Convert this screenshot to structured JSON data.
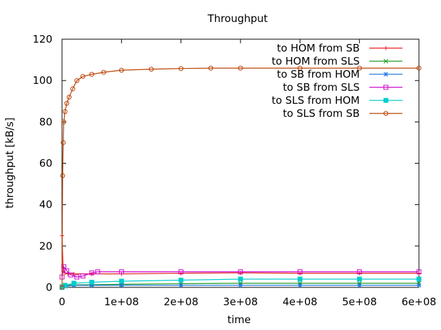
{
  "chart_data": {
    "type": "line",
    "title": "Throughput",
    "xlabel": "time",
    "ylabel": "throughput [kB/s]",
    "xlim": [
      0,
      600000000
    ],
    "ylim": [
      0,
      120
    ],
    "x_ticks": [
      0,
      100000000,
      200000000,
      300000000,
      400000000,
      500000000,
      600000000
    ],
    "x_tick_labels": [
      "0",
      "1e+08",
      "2e+08",
      "3e+08",
      "4e+08",
      "5e+08",
      "6e+08"
    ],
    "y_ticks": [
      0,
      20,
      40,
      60,
      80,
      100,
      120
    ],
    "y_tick_labels": [
      "0",
      "20",
      "40",
      "60",
      "80",
      "100",
      "120"
    ],
    "legend_position": "top-right",
    "grid": false,
    "series": [
      {
        "name": "to HOM from SB",
        "color": "#e41a1c",
        "marker": "plus",
        "x": [
          0,
          2000000,
          5000000,
          10000000,
          20000000,
          50000000,
          100000000,
          200000000,
          300000000,
          400000000,
          500000000,
          600000000
        ],
        "y": [
          25,
          8,
          7,
          6.5,
          6.5,
          6.5,
          6.5,
          6.8,
          7,
          6.8,
          6.8,
          6.8
        ]
      },
      {
        "name": "to HOM from SLS",
        "color": "#1a9a1a",
        "marker": "cross",
        "x": [
          0,
          5000000,
          20000000,
          50000000,
          100000000,
          200000000,
          300000000,
          400000000,
          500000000,
          600000000
        ],
        "y": [
          0.5,
          1,
          1.2,
          1.3,
          1.5,
          1.8,
          2,
          2,
          2,
          2
        ]
      },
      {
        "name": "to SB from HOM",
        "color": "#1f78e0",
        "marker": "star",
        "x": [
          0,
          5000000,
          20000000,
          50000000,
          100000000,
          200000000,
          300000000,
          400000000,
          500000000,
          600000000
        ],
        "y": [
          0,
          0.5,
          1,
          1,
          1,
          1,
          1,
          1,
          1,
          1
        ]
      },
      {
        "name": "to SB from SLS",
        "color": "#cc00cc",
        "marker": "square",
        "x": [
          0,
          3000000,
          8000000,
          15000000,
          25000000,
          35000000,
          50000000,
          60000000,
          100000000,
          200000000,
          300000000,
          400000000,
          500000000,
          600000000
        ],
        "y": [
          5,
          10,
          8,
          6,
          5,
          5.5,
          7,
          7.5,
          7.5,
          7.5,
          7.5,
          7.5,
          7.5,
          7.5
        ]
      },
      {
        "name": "to SLS from HOM",
        "color": "#00cccc",
        "marker": "filled-square",
        "x": [
          0,
          5000000,
          20000000,
          50000000,
          100000000,
          200000000,
          300000000,
          400000000,
          500000000,
          600000000
        ],
        "y": [
          0,
          1,
          2,
          2.5,
          3,
          3.5,
          4,
          4,
          4,
          4
        ]
      },
      {
        "name": "to SLS from SB",
        "color": "#b84000",
        "marker": "circle",
        "x": [
          0,
          1000000,
          2000000,
          3000000,
          5000000,
          8000000,
          12000000,
          18000000,
          25000000,
          35000000,
          50000000,
          70000000,
          100000000,
          150000000,
          200000000,
          250000000,
          300000000,
          400000000,
          500000000,
          600000000
        ],
        "y": [
          0,
          54,
          70,
          80,
          85,
          89,
          92,
          96,
          100,
          102,
          103,
          104,
          105,
          105.5,
          105.8,
          106,
          106,
          106,
          106,
          106
        ]
      }
    ]
  }
}
